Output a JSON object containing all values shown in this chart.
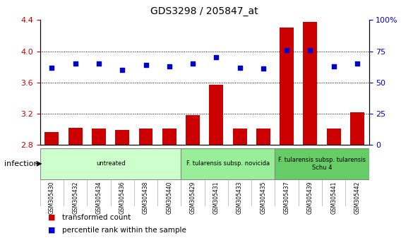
{
  "title": "GDS3298 / 205847_at",
  "samples": [
    "GSM305430",
    "GSM305432",
    "GSM305434",
    "GSM305436",
    "GSM305438",
    "GSM305440",
    "GSM305429",
    "GSM305431",
    "GSM305433",
    "GSM305435",
    "GSM305437",
    "GSM305439",
    "GSM305441",
    "GSM305442"
  ],
  "bar_values": [
    2.97,
    3.02,
    3.01,
    2.99,
    3.01,
    3.01,
    3.18,
    3.57,
    3.01,
    3.01,
    4.3,
    4.38,
    3.01,
    3.22
  ],
  "dot_values": [
    62,
    65,
    65,
    60,
    64,
    63,
    65,
    70,
    62,
    61,
    76,
    76,
    63,
    65
  ],
  "ylim_left": [
    2.8,
    4.4
  ],
  "ylim_right": [
    0,
    100
  ],
  "yticks_left": [
    2.8,
    3.2,
    3.6,
    4.0,
    4.4
  ],
  "yticks_right": [
    0,
    25,
    50,
    75,
    100
  ],
  "bar_color": "#cc0000",
  "dot_color": "#0000cc",
  "groups": [
    {
      "label": "untreated",
      "start": 0,
      "end": 6,
      "color": "#ccffcc"
    },
    {
      "label": "F. tularensis subsp. novicida",
      "start": 6,
      "end": 10,
      "color": "#99ee99"
    },
    {
      "label": "F. tularensis subsp. tularensis\nSchu 4",
      "start": 10,
      "end": 14,
      "color": "#66cc66"
    }
  ],
  "legend_bar_label": "transformed count",
  "legend_dot_label": "percentile rank within the sample",
  "infection_label": "infection",
  "ylabel_left_color": "#cc0000",
  "ylabel_right_color": "#0000cc"
}
